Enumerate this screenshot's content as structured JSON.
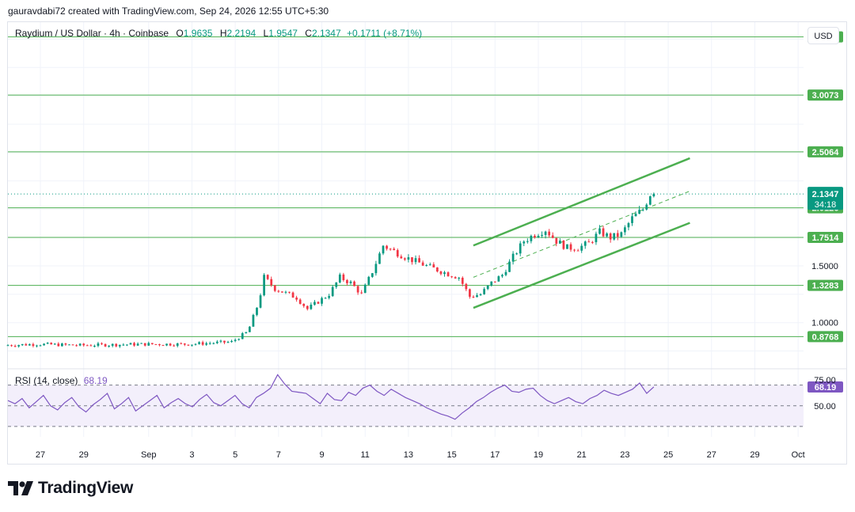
{
  "header": {
    "attribution": "gauravdabi72 created with TradingView.com, Sep 24, 2026 12:55 UTC+5:30"
  },
  "legend": {
    "symbol": "Raydium / US Dollar · 4h · Coinbase",
    "open_label": "O",
    "open": "1.9635",
    "high_label": "H",
    "high": "2.2194",
    "low_label": "L",
    "low": "1.9547",
    "close_label": "C",
    "close": "2.1347",
    "change": "+0.1711 (+8.71%)"
  },
  "currency_button": "USD",
  "branding": {
    "wordmark": "TradingView"
  },
  "colors": {
    "up": "#089981",
    "down": "#f23645",
    "level": "#4caf50",
    "rsi": "#7e57c2"
  },
  "chart_data": [
    {
      "type": "candlestick",
      "title": "Raydium / US Dollar · 4h · Coinbase",
      "y_axis_ticks": [
        "1.0000",
        "1.5000"
      ],
      "x_tick_labels": [
        "27",
        "29",
        "Sep",
        "3",
        "5",
        "7",
        "9",
        "11",
        "13",
        "15",
        "17",
        "19",
        "21",
        "23",
        "25",
        "27",
        "29",
        "Oct"
      ],
      "x_ticks": [
        "2026-08-27",
        "2026-08-29",
        "2026-09-01",
        "2026-09-03",
        "2026-09-05",
        "2026-09-07",
        "2026-09-09",
        "2026-09-11",
        "2026-09-13",
        "2026-09-15",
        "2026-09-17",
        "2026-09-19",
        "2026-09-21",
        "2026-09-23",
        "2026-09-25",
        "2026-09-27",
        "2026-09-29",
        "2026-10-01"
      ],
      "ylim": [
        0.6,
        3.65
      ],
      "xlim": [
        "2026-08-25T12:00",
        "2026-10-01T06:00"
      ],
      "grid": true,
      "horizontal_levels": [
        {
          "value": 3.5201,
          "label": "3.5201"
        },
        {
          "value": 3.0073,
          "label": "3.0073"
        },
        {
          "value": 2.5064,
          "label": "2.5064"
        },
        {
          "value": 2.0126,
          "label": "2.0126"
        },
        {
          "value": 1.7514,
          "label": "1.7514"
        },
        {
          "value": 1.3283,
          "label": "1.3283"
        },
        {
          "value": 0.8768,
          "label": "0.8768"
        }
      ],
      "current_price": {
        "value": 2.1347,
        "label": "2.1347",
        "countdown": "34:18"
      },
      "rising_channel": {
        "upper": [
          [
            "2026-09-16T00:00",
            1.68
          ],
          [
            "2026-09-26T00:00",
            2.45
          ]
        ],
        "middle": [
          [
            "2026-09-16T00:00",
            1.4
          ],
          [
            "2026-09-26T00:00",
            2.16
          ]
        ],
        "lower": [
          [
            "2026-09-16T00:00",
            1.13
          ],
          [
            "2026-09-26T00:00",
            1.88
          ]
        ]
      },
      "price_path": [
        [
          "2026-08-25T12:00",
          0.8
        ],
        [
          "2026-08-27T00:00",
          0.81
        ],
        [
          "2026-08-29T00:00",
          0.8
        ],
        [
          "2026-09-01T00:00",
          0.81
        ],
        [
          "2026-09-03T00:00",
          0.81
        ],
        [
          "2026-09-05T00:00",
          0.83
        ],
        [
          "2026-09-05T18:00",
          0.92
        ],
        [
          "2026-09-06T06:00",
          1.18
        ],
        [
          "2026-09-06T12:00",
          1.4
        ],
        [
          "2026-09-07T00:00",
          1.3
        ],
        [
          "2026-09-08T00:00",
          1.22
        ],
        [
          "2026-09-08T12:00",
          1.12
        ],
        [
          "2026-09-09T12:00",
          1.25
        ],
        [
          "2026-09-10T00:00",
          1.4
        ],
        [
          "2026-09-10T12:00",
          1.35
        ],
        [
          "2026-09-11T00:00",
          1.25
        ],
        [
          "2026-09-11T12:00",
          1.45
        ],
        [
          "2026-09-12T00:00",
          1.68
        ],
        [
          "2026-09-12T12:00",
          1.63
        ],
        [
          "2026-09-13T00:00",
          1.58
        ],
        [
          "2026-09-14T00:00",
          1.5
        ],
        [
          "2026-09-15T00:00",
          1.43
        ],
        [
          "2026-09-15T12:00",
          1.4
        ],
        [
          "2026-09-16T00:00",
          1.23
        ],
        [
          "2026-09-16T12:00",
          1.25
        ],
        [
          "2026-09-17T00:00",
          1.35
        ],
        [
          "2026-09-17T12:00",
          1.42
        ],
        [
          "2026-09-18T00:00",
          1.58
        ],
        [
          "2026-09-18T12:00",
          1.72
        ],
        [
          "2026-09-19T00:00",
          1.78
        ],
        [
          "2026-09-19T12:00",
          1.82
        ],
        [
          "2026-09-20T00:00",
          1.72
        ],
        [
          "2026-09-20T12:00",
          1.66
        ],
        [
          "2026-09-21T00:00",
          1.66
        ],
        [
          "2026-09-21T12:00",
          1.7
        ],
        [
          "2026-09-22T00:00",
          1.8
        ],
        [
          "2026-09-22T12:00",
          1.75
        ],
        [
          "2026-09-23T00:00",
          1.78
        ],
        [
          "2026-09-23T12:00",
          1.92
        ],
        [
          "2026-09-24T00:00",
          2.0
        ],
        [
          "2026-09-24T08:00",
          2.1347
        ]
      ],
      "volatility": 0.015
    },
    {
      "type": "line",
      "title": "RSI (14, close)",
      "value_label": "68.19",
      "y_axis_ticks": [
        "75.00",
        "50.00"
      ],
      "band": [
        30,
        70
      ],
      "ylim": [
        20,
        85
      ],
      "series": [
        {
          "name": "RSI (14, close)",
          "values": [
            55,
            52,
            57,
            48,
            54,
            60,
            50,
            46,
            53,
            58,
            49,
            44,
            51,
            56,
            62,
            47,
            52,
            58,
            45,
            50,
            55,
            60,
            48,
            53,
            57,
            52,
            49,
            56,
            61,
            53,
            50,
            55,
            60,
            52,
            48,
            58,
            62,
            67,
            80,
            71,
            64,
            63,
            62,
            57,
            52,
            62,
            56,
            55,
            63,
            60,
            67,
            70,
            64,
            60,
            66,
            62,
            58,
            55,
            52,
            48,
            45,
            42,
            40,
            37,
            43,
            48,
            54,
            58,
            63,
            67,
            70,
            64,
            63,
            66,
            67,
            60,
            55,
            52,
            55,
            58,
            54,
            52,
            57,
            60,
            65,
            62,
            60,
            63,
            66,
            72,
            62,
            68.19
          ]
        }
      ]
    }
  ]
}
